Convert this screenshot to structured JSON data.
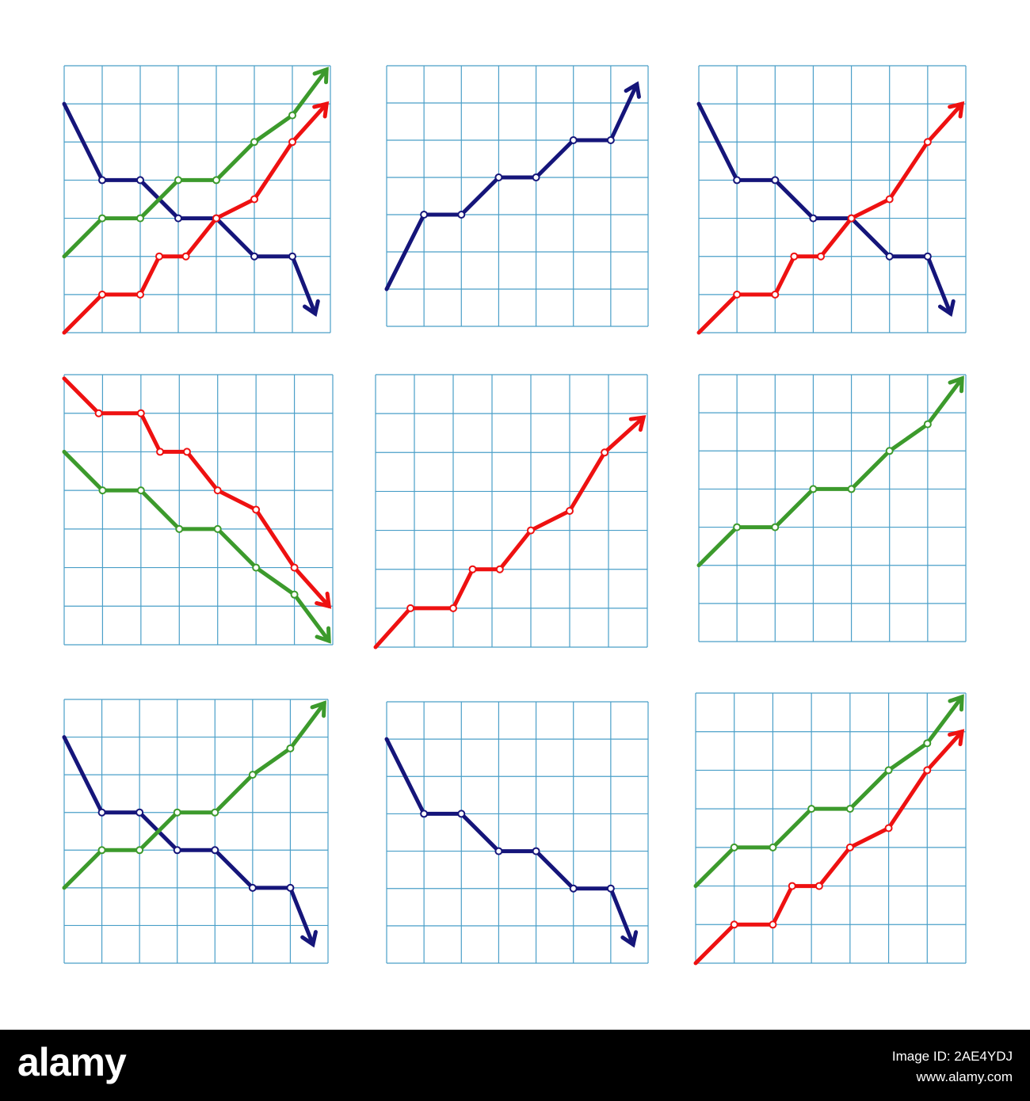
{
  "chart_data": [
    {
      "type": "line",
      "xlim": [
        0,
        7
      ],
      "ylim": [
        0,
        7
      ],
      "xticks": [
        0,
        1,
        2,
        3,
        4,
        5,
        6,
        7
      ],
      "yticks": [
        0,
        1,
        2,
        3,
        4,
        5,
        6,
        7
      ],
      "grid": true,
      "series": [
        {
          "color": "#15157a",
          "x": [
            0,
            1,
            2,
            3,
            4,
            5,
            6,
            6.6
          ],
          "values": [
            6,
            4,
            4,
            3,
            3,
            2,
            2,
            0.5
          ]
        },
        {
          "color": "#3c9a2c",
          "x": [
            0,
            1,
            2,
            3,
            4,
            5,
            6,
            6.9
          ],
          "values": [
            2,
            3,
            3,
            4,
            4,
            5,
            5.7,
            6.9
          ]
        },
        {
          "color": "#ee1111",
          "x": [
            0,
            1,
            2,
            2.5,
            3.2,
            4,
            5,
            6,
            6.9
          ],
          "values": [
            0,
            1,
            1,
            2,
            2,
            3,
            3.5,
            5,
            6
          ]
        }
      ]
    },
    {
      "type": "line",
      "xlim": [
        0,
        7
      ],
      "ylim": [
        0,
        7
      ],
      "xticks": [
        0,
        1,
        2,
        3,
        4,
        5,
        6,
        7
      ],
      "yticks": [
        0,
        1,
        2,
        3,
        4,
        5,
        6,
        7
      ],
      "grid": true,
      "series": [
        {
          "color": "#15157a",
          "x": [
            0,
            1,
            2,
            3,
            4,
            5,
            6,
            6.7
          ],
          "values": [
            1,
            3,
            3,
            4,
            4,
            5,
            5,
            6.5
          ]
        }
      ]
    },
    {
      "type": "line",
      "xlim": [
        0,
        7
      ],
      "ylim": [
        0,
        7
      ],
      "xticks": [
        0,
        1,
        2,
        3,
        4,
        5,
        6,
        7
      ],
      "yticks": [
        0,
        1,
        2,
        3,
        4,
        5,
        6,
        7
      ],
      "grid": true,
      "series": [
        {
          "color": "#15157a",
          "x": [
            0,
            1,
            2,
            3,
            4,
            5,
            6,
            6.6
          ],
          "values": [
            6,
            4,
            4,
            3,
            3,
            2,
            2,
            0.5
          ]
        },
        {
          "color": "#ee1111",
          "x": [
            0,
            1,
            2,
            2.5,
            3.2,
            4,
            5,
            6,
            6.9
          ],
          "values": [
            0,
            1,
            1,
            2,
            2,
            3,
            3.5,
            5,
            6
          ]
        }
      ]
    },
    {
      "type": "line",
      "xlim": [
        0,
        7
      ],
      "ylim": [
        0,
        7
      ],
      "xticks": [
        0,
        1,
        2,
        3,
        4,
        5,
        6,
        7
      ],
      "yticks": [
        0,
        1,
        2,
        3,
        4,
        5,
        6,
        7
      ],
      "grid": true,
      "series": [
        {
          "color": "#ee1111",
          "x": [
            0,
            0.9,
            2,
            2.5,
            3.2,
            4,
            5,
            6,
            6.9
          ],
          "values": [
            6.9,
            6,
            6,
            5,
            5,
            4,
            3.5,
            2,
            1
          ]
        },
        {
          "color": "#3c9a2c",
          "x": [
            0,
            1,
            2,
            3,
            4,
            5,
            6,
            6.9
          ],
          "values": [
            5,
            4,
            4,
            3,
            3,
            2,
            1.3,
            0.1
          ]
        }
      ]
    },
    {
      "type": "line",
      "xlim": [
        0,
        7
      ],
      "ylim": [
        0,
        7
      ],
      "xticks": [
        0,
        1,
        2,
        3,
        4,
        5,
        6,
        7
      ],
      "yticks": [
        0,
        1,
        2,
        3,
        4,
        5,
        6,
        7
      ],
      "grid": true,
      "series": [
        {
          "color": "#ee1111",
          "x": [
            0,
            0.9,
            2,
            2.5,
            3.2,
            4,
            5,
            5.9,
            6.9
          ],
          "values": [
            0,
            1,
            1,
            2,
            2,
            3,
            3.5,
            5,
            5.9
          ]
        }
      ]
    },
    {
      "type": "line",
      "xlim": [
        0,
        7
      ],
      "ylim": [
        0,
        7
      ],
      "xticks": [
        0,
        1,
        2,
        3,
        4,
        5,
        6,
        7
      ],
      "yticks": [
        0,
        1,
        2,
        3,
        4,
        5,
        6,
        7
      ],
      "grid": true,
      "series": [
        {
          "color": "#3c9a2c",
          "x": [
            0,
            1,
            2,
            3,
            4,
            5,
            6,
            6.9
          ],
          "values": [
            2,
            3,
            3,
            4,
            4,
            5,
            5.7,
            6.9
          ]
        }
      ]
    },
    {
      "type": "line",
      "xlim": [
        0,
        7
      ],
      "ylim": [
        0,
        7
      ],
      "xticks": [
        0,
        1,
        2,
        3,
        4,
        5,
        6,
        7
      ],
      "yticks": [
        0,
        1,
        2,
        3,
        4,
        5,
        6,
        7
      ],
      "grid": true,
      "series": [
        {
          "color": "#15157a",
          "x": [
            0,
            1,
            2,
            3,
            4,
            5,
            6,
            6.6
          ],
          "values": [
            6,
            4,
            4,
            3,
            3,
            2,
            2,
            0.5
          ]
        },
        {
          "color": "#3c9a2c",
          "x": [
            0,
            1,
            2,
            3,
            4,
            5,
            6,
            6.9
          ],
          "values": [
            2,
            3,
            3,
            4,
            4,
            5,
            5.7,
            6.9
          ]
        }
      ]
    },
    {
      "type": "line",
      "xlim": [
        0,
        7
      ],
      "ylim": [
        0,
        7
      ],
      "xticks": [
        0,
        1,
        2,
        3,
        4,
        5,
        6,
        7
      ],
      "yticks": [
        0,
        1,
        2,
        3,
        4,
        5,
        6,
        7
      ],
      "grid": true,
      "series": [
        {
          "color": "#15157a",
          "x": [
            0,
            1,
            2,
            3,
            4,
            5,
            6,
            6.6
          ],
          "values": [
            6,
            4,
            4,
            3,
            3,
            2,
            2,
            0.5
          ]
        }
      ]
    },
    {
      "type": "line",
      "xlim": [
        0,
        7
      ],
      "ylim": [
        0,
        7
      ],
      "xticks": [
        0,
        1,
        2,
        3,
        4,
        5,
        6,
        7
      ],
      "yticks": [
        0,
        1,
        2,
        3,
        4,
        5,
        6,
        7
      ],
      "grid": true,
      "series": [
        {
          "color": "#3c9a2c",
          "x": [
            0,
            1,
            2,
            3,
            4,
            5,
            6,
            6.9
          ],
          "values": [
            2,
            3,
            3,
            4,
            4,
            5,
            5.7,
            6.9
          ]
        },
        {
          "color": "#ee1111",
          "x": [
            0,
            1,
            2,
            2.5,
            3.2,
            4,
            5,
            6,
            6.9
          ],
          "values": [
            0,
            1,
            1,
            2,
            2,
            3,
            3.5,
            5,
            6
          ]
        }
      ]
    }
  ],
  "footer": {
    "logo": "alamy",
    "image_id": "Image ID: 2AE4YDJ",
    "url": "www.alamy.com"
  }
}
